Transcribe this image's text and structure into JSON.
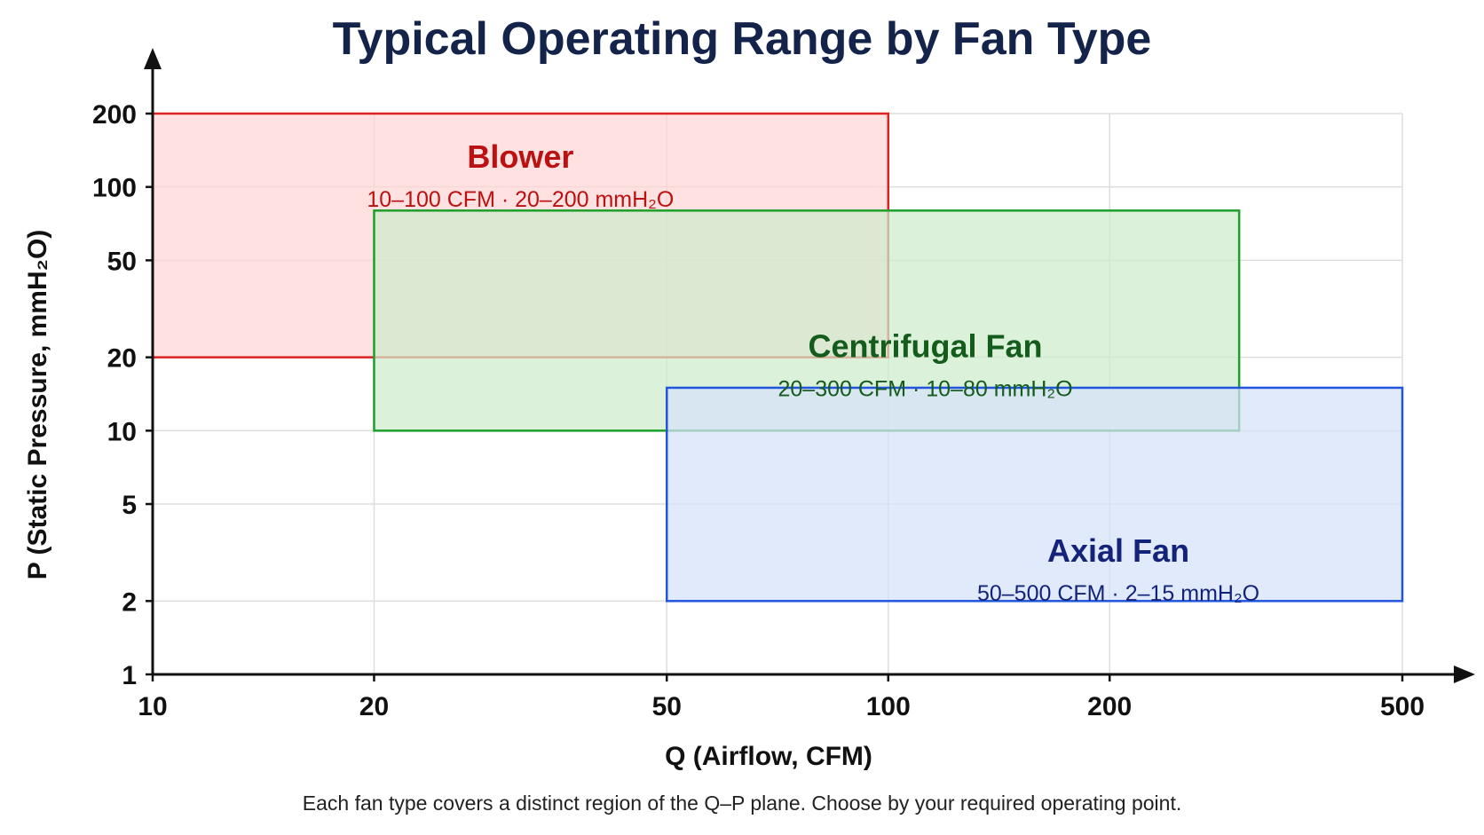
{
  "chart_data": {
    "type": "range-rectangles",
    "title": "Typical Operating Range by Fan Type",
    "xlabel": "Q (Airflow, CFM)",
    "ylabel": "P (Static Pressure, mmH₂O)",
    "xscale": "log",
    "yscale": "log",
    "xlim": [
      10,
      500
    ],
    "ylim": [
      1,
      200
    ],
    "x_ticks": [
      10,
      20,
      50,
      100,
      200,
      500
    ],
    "y_ticks": [
      1,
      2,
      5,
      10,
      20,
      50,
      100,
      200
    ],
    "grid": true,
    "regions": [
      {
        "name": "Blower",
        "range_label": "10–100 CFM · 20–200 mmH₂O",
        "q_min": 10,
        "q_max": 100,
        "p_min": 20,
        "p_max": 200,
        "fill": "#ffd6d6",
        "stroke": "#dd2222",
        "text_color": "#bb1111"
      },
      {
        "name": "Centrifugal Fan",
        "range_label": "20–300 CFM · 10–80 mmH₂O",
        "q_min": 20,
        "q_max": 300,
        "p_min": 10,
        "p_max": 80,
        "fill": "#cfeccc",
        "stroke": "#1e9e2a",
        "text_color": "#145c1c"
      },
      {
        "name": "Axial Fan",
        "range_label": "50–500 CFM · 2–15 mmH₂O",
        "q_min": 50,
        "q_max": 500,
        "p_min": 2,
        "p_max": 15,
        "fill": "#d6e2fa",
        "stroke": "#2255dd",
        "text_color": "#14237a"
      }
    ],
    "caption": "Each fan type covers a distinct region of the Q–P plane. Choose by your required operating point."
  },
  "colors": {
    "title": "#14234a",
    "axis": "#111111",
    "grid": "#dddddd"
  }
}
